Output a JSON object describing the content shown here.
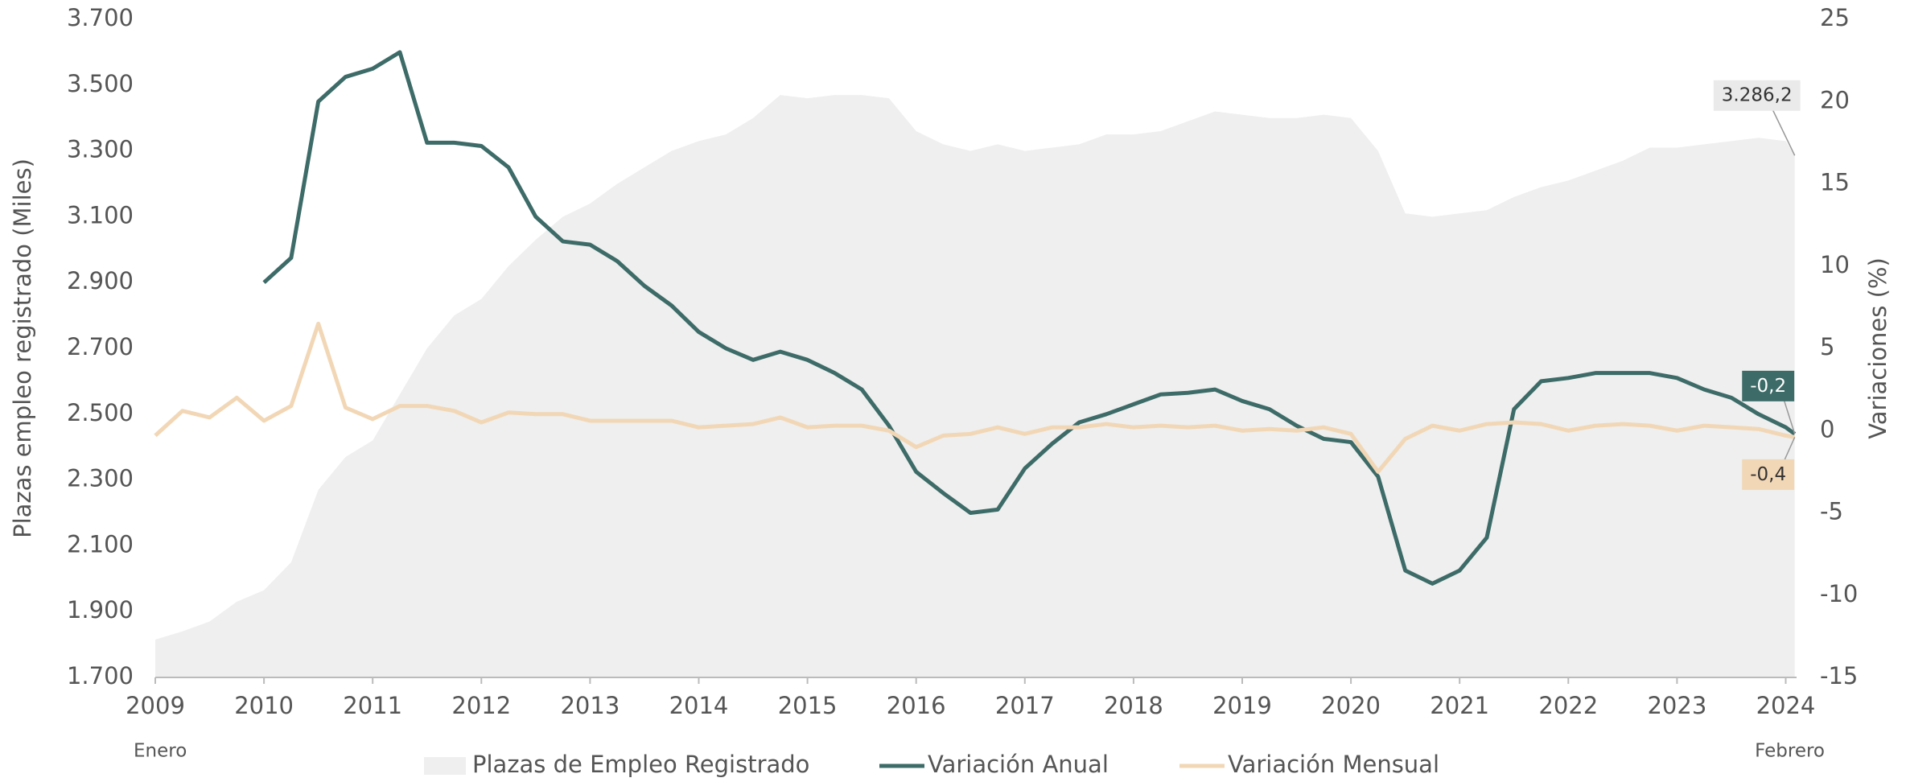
{
  "chart_data": {
    "type": "line",
    "ylabel": "Plazas empleo registrado (Miles)",
    "y2label": "Variaciones (%)",
    "annotations": [
      "Enero",
      "Febrero"
    ],
    "x": [
      2009.0,
      2009.25,
      2009.5,
      2009.75,
      2010.0,
      2010.25,
      2010.5,
      2010.75,
      2011.0,
      2011.25,
      2011.5,
      2011.75,
      2012.0,
      2012.25,
      2012.5,
      2012.75,
      2013.0,
      2013.25,
      2013.5,
      2013.75,
      2014.0,
      2014.25,
      2014.5,
      2014.75,
      2015.0,
      2015.25,
      2015.5,
      2015.75,
      2016.0,
      2016.25,
      2016.5,
      2016.75,
      2017.0,
      2017.25,
      2017.5,
      2017.75,
      2018.0,
      2018.25,
      2018.5,
      2018.75,
      2019.0,
      2019.25,
      2019.5,
      2019.75,
      2020.0,
      2020.25,
      2020.5,
      2020.75,
      2021.0,
      2021.25,
      2021.5,
      2021.75,
      2022.0,
      2022.25,
      2022.5,
      2022.75,
      2023.0,
      2023.25,
      2023.5,
      2023.75,
      2024.0,
      2024.083
    ],
    "xlim": [
      2009,
      2024.1
    ],
    "xticks": [
      2009,
      2010,
      2011,
      2012,
      2013,
      2014,
      2015,
      2016,
      2017,
      2018,
      2019,
      2020,
      2021,
      2022,
      2023,
      2024
    ],
    "ylim": [
      1700,
      3700
    ],
    "yticks": [
      {
        "value": 1700,
        "label": "1.700"
      },
      {
        "value": 1900,
        "label": "1.900"
      },
      {
        "value": 2100,
        "label": "2.100"
      },
      {
        "value": 2300,
        "label": "2.300"
      },
      {
        "value": 2500,
        "label": "2.500"
      },
      {
        "value": 2700,
        "label": "2.700"
      },
      {
        "value": 2900,
        "label": "2.900"
      },
      {
        "value": 3100,
        "label": "3.100"
      },
      {
        "value": 3300,
        "label": "3.300"
      },
      {
        "value": 3500,
        "label": "3.500"
      },
      {
        "value": 3700,
        "label": "3.700"
      }
    ],
    "y2lim": [
      -15,
      25
    ],
    "y2ticks": [
      -15,
      -10,
      -5,
      0,
      5,
      10,
      15,
      20,
      25
    ],
    "series": [
      {
        "name": "Plazas de Empleo Registrado",
        "type": "area",
        "color": "#eeefee",
        "label_color": "#e9eae9",
        "label_text_color": "#333333",
        "values": [
          1815,
          1840,
          1870,
          1930,
          1965,
          2050,
          2270,
          2370,
          2420,
          2560,
          2700,
          2800,
          2850,
          2950,
          3030,
          3100,
          3140,
          3200,
          3250,
          3300,
          3330,
          3350,
          3400,
          3470,
          3460,
          3470,
          3470,
          3460,
          3360,
          3320,
          3300,
          3320,
          3300,
          3310,
          3320,
          3350,
          3350,
          3360,
          3390,
          3420,
          3410,
          3400,
          3400,
          3410,
          3400,
          3300,
          3110,
          3100,
          3110,
          3120,
          3160,
          3190,
          3210,
          3240,
          3270,
          3310,
          3310,
          3320,
          3330,
          3340,
          3330,
          3286.2
        ],
        "value_labels": [
          null,
          null,
          null,
          null,
          null,
          null,
          null,
          null,
          null,
          null,
          null,
          null,
          null,
          null,
          null,
          null,
          null,
          null,
          null,
          null,
          null,
          null,
          null,
          null,
          null,
          null,
          null,
          null,
          null,
          null,
          null,
          null,
          null,
          null,
          null,
          null,
          null,
          null,
          null,
          null,
          null,
          null,
          null,
          null,
          null,
          null,
          null,
          null,
          null,
          null,
          null,
          null,
          null,
          null,
          null,
          null,
          null,
          null,
          null,
          null,
          null,
          "3.286,2"
        ]
      },
      {
        "name": "Variación Anual",
        "type": "line",
        "axis": "y2",
        "color": "#3d6b68",
        "label_color": "#3d6b68",
        "label_text_color": "#ffffff",
        "values": [
          null,
          null,
          null,
          null,
          9,
          10.5,
          20,
          21.5,
          22,
          23,
          17.5,
          17.5,
          17.3,
          16,
          13,
          11.5,
          11.3,
          10.3,
          8.8,
          7.6,
          6,
          5,
          4.3,
          4.8,
          4.3,
          3.5,
          2.5,
          0.3,
          -2.5,
          -3.8,
          -5,
          -4.8,
          -2.3,
          -0.8,
          0.5,
          1,
          1.6,
          2.2,
          2.3,
          2.5,
          1.8,
          1.3,
          0.3,
          -0.5,
          -0.7,
          -2.8,
          -8.5,
          -9.3,
          -8.5,
          -6.5,
          1.3,
          3,
          3.2,
          3.5,
          3.5,
          3.5,
          3.2,
          2.5,
          2,
          1,
          0.2,
          -0.2
        ],
        "value_labels": [
          null,
          null,
          null,
          null,
          null,
          null,
          null,
          null,
          null,
          null,
          null,
          null,
          null,
          null,
          null,
          null,
          null,
          null,
          null,
          null,
          null,
          null,
          null,
          null,
          null,
          null,
          null,
          null,
          null,
          null,
          null,
          null,
          null,
          null,
          null,
          null,
          null,
          null,
          null,
          null,
          null,
          null,
          null,
          null,
          null,
          null,
          null,
          null,
          null,
          null,
          null,
          null,
          null,
          null,
          null,
          null,
          null,
          null,
          null,
          null,
          null,
          "-0,2"
        ]
      },
      {
        "name": "Variación Mensual",
        "type": "line",
        "axis": "y2",
        "color": "#f2d7b6",
        "label_color": "#f2d7b6",
        "label_text_color": "#333333",
        "values": [
          -0.3,
          1.2,
          0.8,
          2,
          0.6,
          1.5,
          6.5,
          1.4,
          0.7,
          1.5,
          1.5,
          1.2,
          0.5,
          1.1,
          1,
          1,
          0.6,
          0.6,
          0.6,
          0.6,
          0.2,
          0.3,
          0.4,
          0.8,
          0.2,
          0.3,
          0.3,
          0,
          -1,
          -0.3,
          -0.2,
          0.2,
          -0.2,
          0.2,
          0.2,
          0.4,
          0.2,
          0.3,
          0.2,
          0.3,
          0,
          0.1,
          0,
          0.2,
          -0.2,
          -2.5,
          -0.5,
          0.3,
          0,
          0.4,
          0.5,
          0.4,
          0,
          0.3,
          0.4,
          0.3,
          0,
          0.3,
          0.2,
          0.1,
          -0.3,
          -0.4
        ],
        "value_labels": [
          null,
          null,
          null,
          null,
          null,
          null,
          null,
          null,
          null,
          null,
          null,
          null,
          null,
          null,
          null,
          null,
          null,
          null,
          null,
          null,
          null,
          null,
          null,
          null,
          null,
          null,
          null,
          null,
          null,
          null,
          null,
          null,
          null,
          null,
          null,
          null,
          null,
          null,
          null,
          null,
          null,
          null,
          null,
          null,
          null,
          null,
          null,
          null,
          null,
          null,
          null,
          null,
          null,
          null,
          null,
          null,
          null,
          null,
          null,
          null,
          null,
          "-0,4"
        ]
      }
    ]
  }
}
